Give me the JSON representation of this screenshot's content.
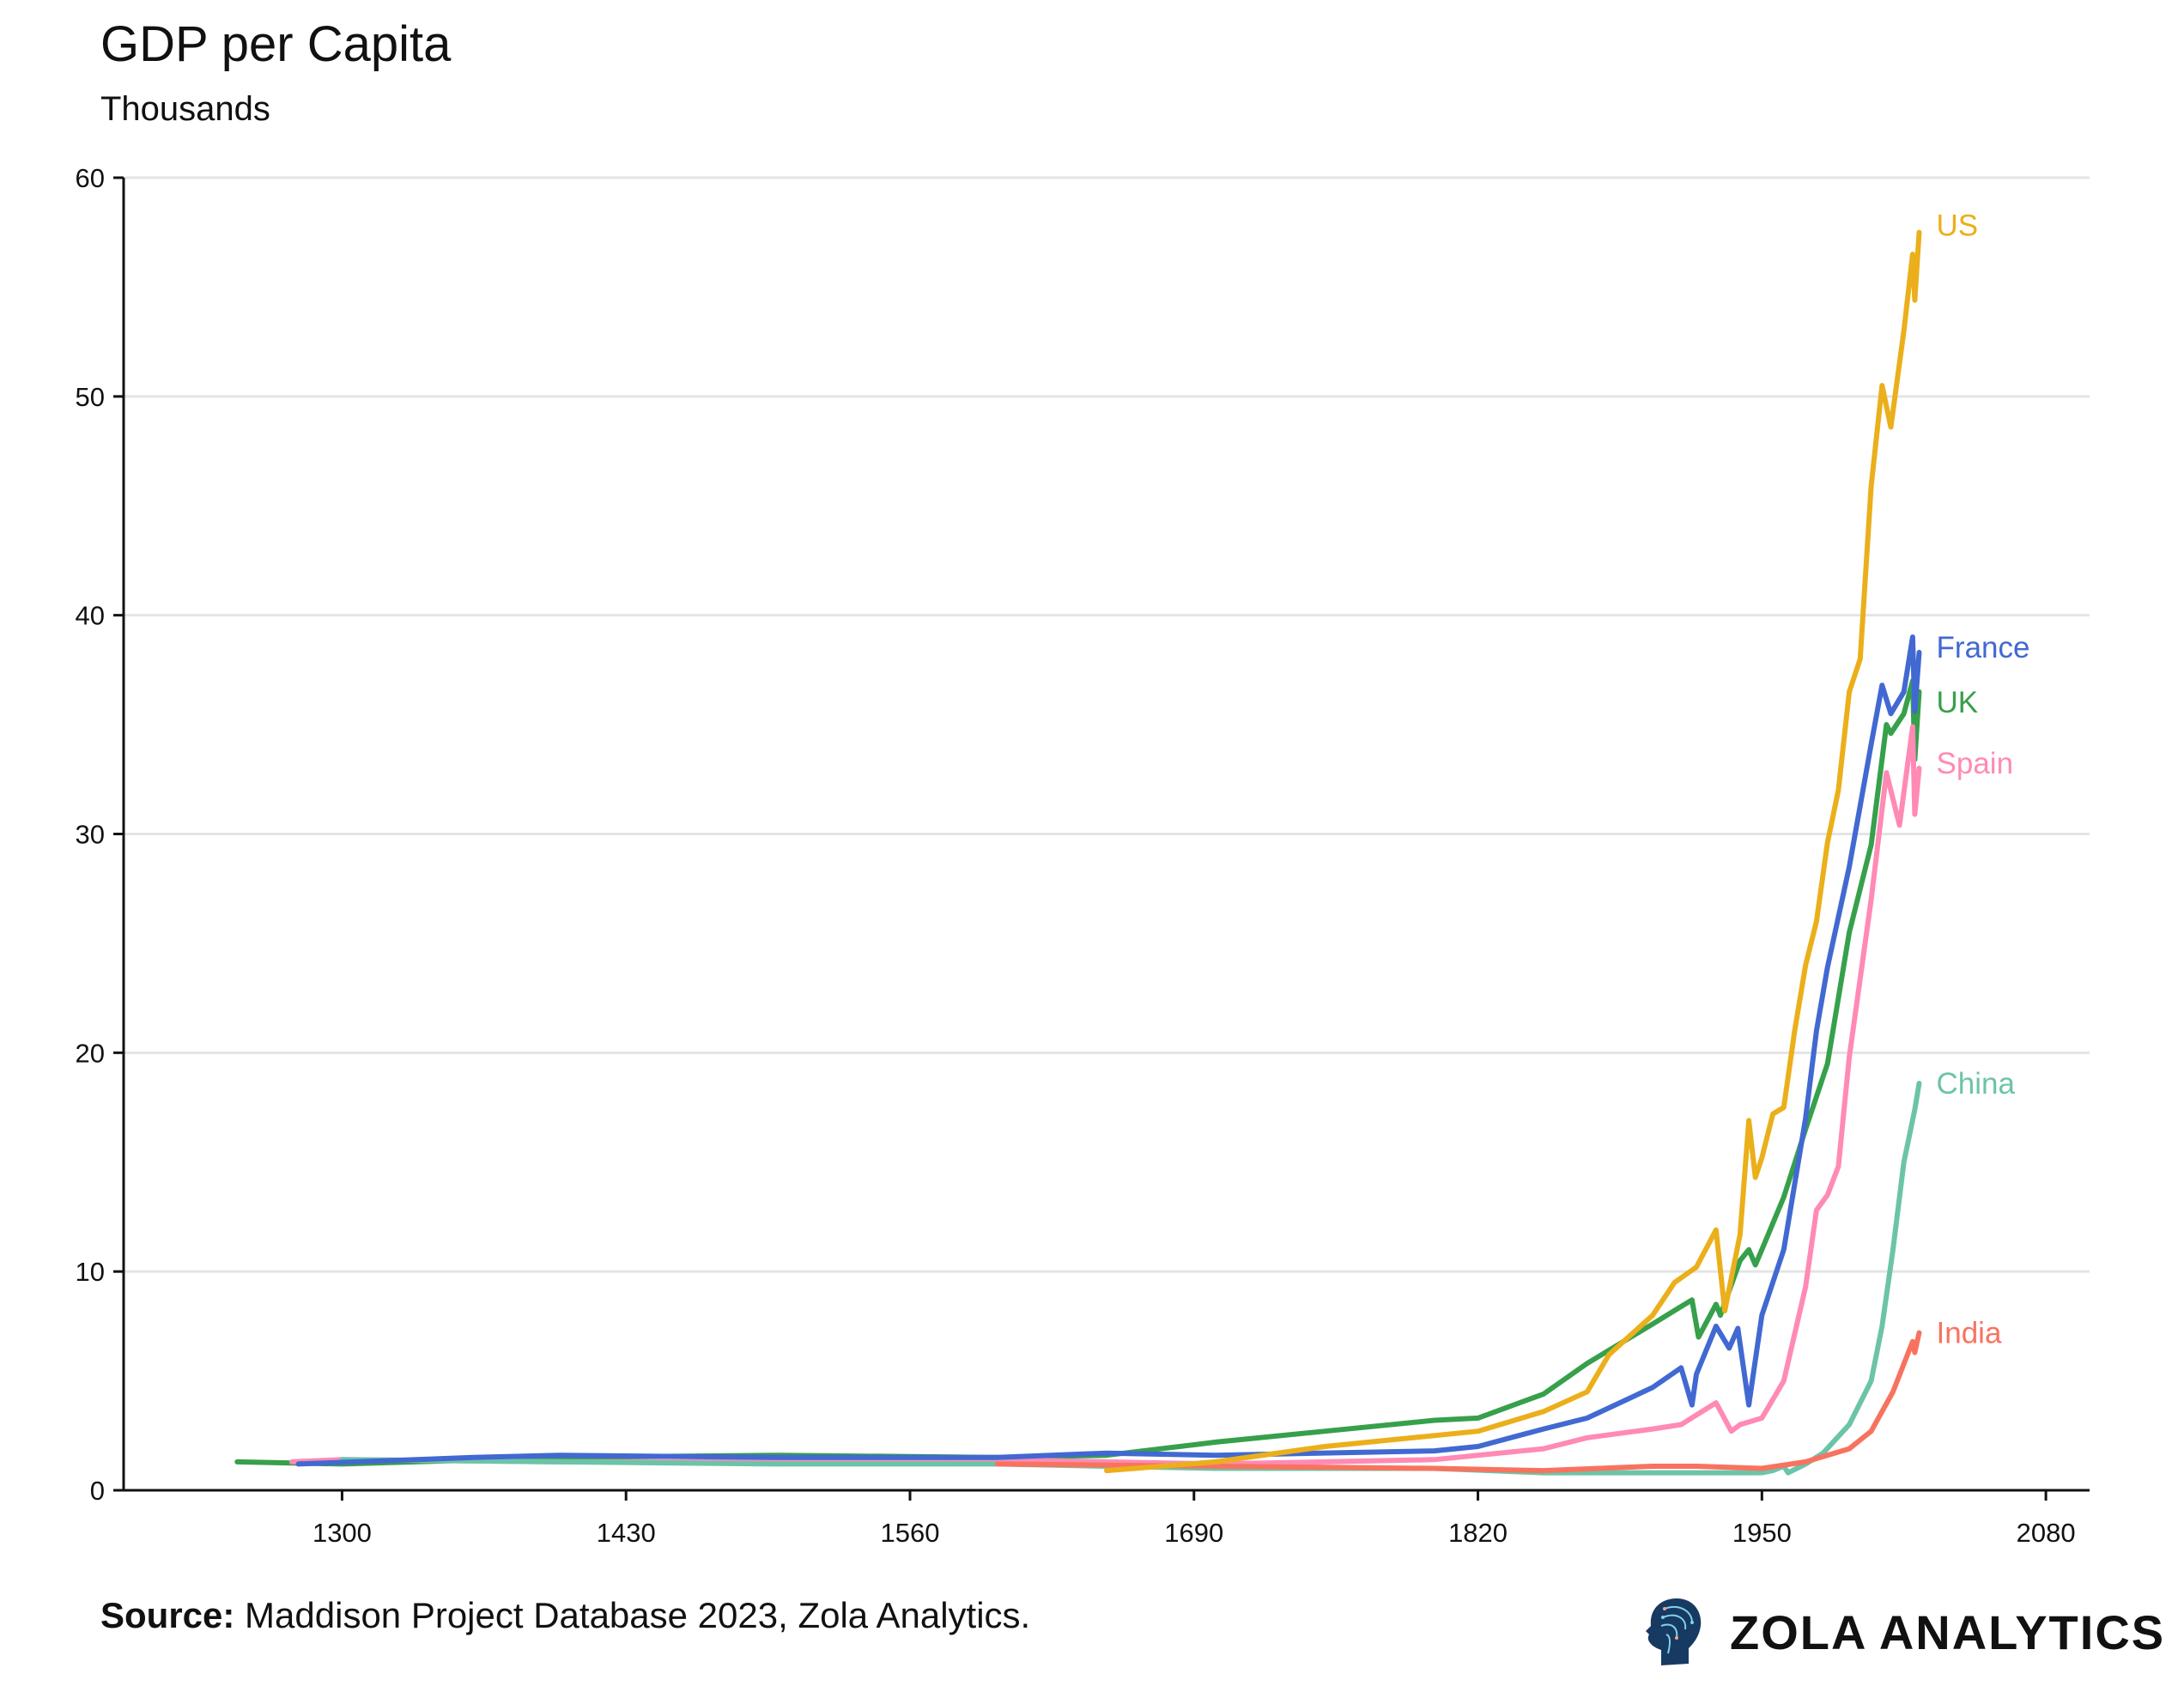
{
  "header": {
    "title": "GDP per Capita",
    "subtitle": "Thousands"
  },
  "footer": {
    "source_label": "Source:",
    "source_text": "Maddison Project Database 2023, Zola Analytics.",
    "logo_text": "ZOLA ANALYTICS"
  },
  "chart_data": {
    "type": "line",
    "title": "GDP per Capita",
    "subtitle": "Thousands",
    "xlabel": "",
    "ylabel": "",
    "xlim": [
      1200,
      2100
    ],
    "ylim": [
      0,
      60
    ],
    "xticks": [
      1300,
      1430,
      1560,
      1690,
      1820,
      1950,
      2080
    ],
    "yticks": [
      0,
      10,
      20,
      30,
      40,
      50,
      60
    ],
    "grid": "horizontal",
    "legend": "end-of-line labels",
    "series": [
      {
        "name": "US",
        "color": "#EBAF1B",
        "points": [
          [
            1650,
            0.9
          ],
          [
            1700,
            1.3
          ],
          [
            1750,
            2.0
          ],
          [
            1800,
            2.5
          ],
          [
            1820,
            2.7
          ],
          [
            1850,
            3.6
          ],
          [
            1870,
            4.5
          ],
          [
            1880,
            6.2
          ],
          [
            1900,
            8.0
          ],
          [
            1910,
            9.5
          ],
          [
            1920,
            10.2
          ],
          [
            1929,
            11.9
          ],
          [
            1933,
            8.2
          ],
          [
            1940,
            11.7
          ],
          [
            1944,
            16.9
          ],
          [
            1947,
            14.3
          ],
          [
            1950,
            15.2
          ],
          [
            1955,
            17.2
          ],
          [
            1960,
            17.5
          ],
          [
            1965,
            21
          ],
          [
            1970,
            24
          ],
          [
            1975,
            26
          ],
          [
            1980,
            29.6
          ],
          [
            1985,
            32
          ],
          [
            1990,
            36.5
          ],
          [
            1995,
            38
          ],
          [
            2000,
            45.9
          ],
          [
            2005,
            50.5
          ],
          [
            2009,
            48.6
          ],
          [
            2015,
            53
          ],
          [
            2019,
            56.5
          ],
          [
            2020,
            54.4
          ],
          [
            2022,
            57.5
          ]
        ]
      },
      {
        "name": "France",
        "color": "#4169D1",
        "points": [
          [
            1280,
            1.2
          ],
          [
            1360,
            1.5
          ],
          [
            1400,
            1.6
          ],
          [
            1500,
            1.5
          ],
          [
            1600,
            1.5
          ],
          [
            1650,
            1.7
          ],
          [
            1700,
            1.6
          ],
          [
            1800,
            1.8
          ],
          [
            1820,
            2.0
          ],
          [
            1850,
            2.8
          ],
          [
            1870,
            3.3
          ],
          [
            1900,
            4.7
          ],
          [
            1913,
            5.6
          ],
          [
            1918,
            3.9
          ],
          [
            1920,
            5.3
          ],
          [
            1929,
            7.5
          ],
          [
            1935,
            6.5
          ],
          [
            1939,
            7.4
          ],
          [
            1944,
            3.9
          ],
          [
            1950,
            8.0
          ],
          [
            1960,
            11
          ],
          [
            1970,
            17
          ],
          [
            1975,
            21
          ],
          [
            1980,
            23.9
          ],
          [
            1990,
            28.5
          ],
          [
            2000,
            34.1
          ],
          [
            2005,
            36.8
          ],
          [
            2009,
            35.5
          ],
          [
            2015,
            36.5
          ],
          [
            2019,
            39.0
          ],
          [
            2020,
            35.6
          ],
          [
            2022,
            38.3
          ]
        ]
      },
      {
        "name": "UK",
        "color": "#36A04B",
        "points": [
          [
            1252,
            1.3
          ],
          [
            1300,
            1.2
          ],
          [
            1400,
            1.5
          ],
          [
            1500,
            1.6
          ],
          [
            1600,
            1.5
          ],
          [
            1650,
            1.6
          ],
          [
            1700,
            2.2
          ],
          [
            1750,
            2.7
          ],
          [
            1800,
            3.2
          ],
          [
            1820,
            3.3
          ],
          [
            1850,
            4.4
          ],
          [
            1870,
            5.8
          ],
          [
            1900,
            7.6
          ],
          [
            1913,
            8.4
          ],
          [
            1918,
            8.7
          ],
          [
            1921,
            7.0
          ],
          [
            1929,
            8.5
          ],
          [
            1931,
            8.0
          ],
          [
            1940,
            10.5
          ],
          [
            1944,
            11.0
          ],
          [
            1947,
            10.3
          ],
          [
            1950,
            11.0
          ],
          [
            1960,
            13.4
          ],
          [
            1970,
            16.5
          ],
          [
            1980,
            19.5
          ],
          [
            1990,
            25.5
          ],
          [
            2000,
            29.5
          ],
          [
            2007,
            35.0
          ],
          [
            2009,
            34.6
          ],
          [
            2015,
            35.5
          ],
          [
            2019,
            37.0
          ],
          [
            2020,
            33.4
          ],
          [
            2022,
            36.5
          ]
        ]
      },
      {
        "name": "Spain",
        "color": "#FF8AB5",
        "points": [
          [
            1277,
            1.3
          ],
          [
            1300,
            1.4
          ],
          [
            1400,
            1.3
          ],
          [
            1500,
            1.3
          ],
          [
            1600,
            1.4
          ],
          [
            1700,
            1.2
          ],
          [
            1800,
            1.4
          ],
          [
            1850,
            1.9
          ],
          [
            1870,
            2.4
          ],
          [
            1900,
            2.8
          ],
          [
            1913,
            3.0
          ],
          [
            1929,
            4.0
          ],
          [
            1936,
            2.7
          ],
          [
            1940,
            3.0
          ],
          [
            1950,
            3.3
          ],
          [
            1960,
            5.0
          ],
          [
            1970,
            9.3
          ],
          [
            1975,
            12.8
          ],
          [
            1980,
            13.5
          ],
          [
            1985,
            14.8
          ],
          [
            1990,
            19.8
          ],
          [
            2000,
            27
          ],
          [
            2007,
            32.8
          ],
          [
            2013,
            30.4
          ],
          [
            2019,
            34.9
          ],
          [
            2020,
            30.9
          ],
          [
            2022,
            33
          ]
        ]
      },
      {
        "name": "China",
        "color": "#6CC4A8",
        "points": [
          [
            1300,
            1.4
          ],
          [
            1400,
            1.3
          ],
          [
            1500,
            1.2
          ],
          [
            1600,
            1.2
          ],
          [
            1700,
            1.0
          ],
          [
            1800,
            1.0
          ],
          [
            1850,
            0.8
          ],
          [
            1900,
            0.8
          ],
          [
            1950,
            0.8
          ],
          [
            1955,
            0.9
          ],
          [
            1960,
            1.1
          ],
          [
            1962,
            0.8
          ],
          [
            1970,
            1.2
          ],
          [
            1978,
            1.7
          ],
          [
            1990,
            3
          ],
          [
            2000,
            5
          ],
          [
            2005,
            7.5
          ],
          [
            2010,
            11
          ],
          [
            2015,
            15
          ],
          [
            2020,
            17.4
          ],
          [
            2022,
            18.6
          ]
        ]
      },
      {
        "name": "India",
        "color": "#F8735F",
        "points": [
          [
            1600,
            1.2
          ],
          [
            1700,
            1.1
          ],
          [
            1800,
            1.0
          ],
          [
            1850,
            0.9
          ],
          [
            1900,
            1.1
          ],
          [
            1920,
            1.1
          ],
          [
            1950,
            1.0
          ],
          [
            1970,
            1.3
          ],
          [
            1990,
            1.9
          ],
          [
            2000,
            2.7
          ],
          [
            2010,
            4.5
          ],
          [
            2019,
            6.8
          ],
          [
            2020,
            6.3
          ],
          [
            2022,
            7.2
          ]
        ]
      }
    ]
  }
}
